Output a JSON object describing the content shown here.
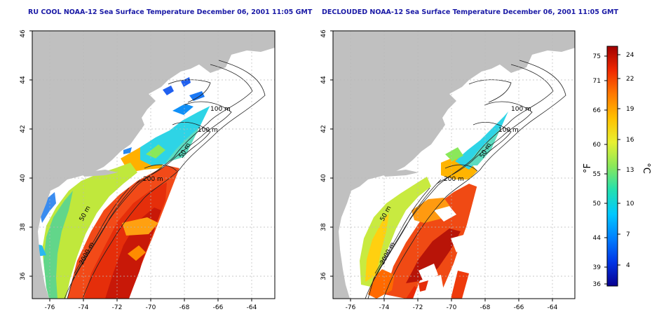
{
  "panels": [
    {
      "title": "RU COOL NOAA-12 Sea Surface Temperature December 06, 2001 11:05 GMT",
      "contour_labels": [
        "100 m",
        "100 m",
        "50 m",
        "200 m",
        "50 m",
        "2000 m"
      ]
    },
    {
      "title": "DECLOUDED NOAA-12 Sea Surface Temperature December 06, 2001 11:05 GMT",
      "contour_labels": [
        "100 m",
        "100 m",
        "50 m",
        "200 m",
        "50 m",
        "2000 m"
      ]
    }
  ],
  "map_axes": {
    "lon_ticks": [
      "-76",
      "-74",
      "-72",
      "-70",
      "-68",
      "-66",
      "-64"
    ],
    "lat_ticks": [
      "36",
      "38",
      "40",
      "42",
      "44",
      "46"
    ]
  },
  "colorbar": {
    "unit_f": "°F",
    "unit_c": "°C",
    "f_ticks": [
      "75",
      "71",
      "66",
      "60",
      "55",
      "50",
      "44",
      "39",
      "36"
    ],
    "c_ticks": [
      "24",
      "22",
      "19",
      "16",
      "13",
      "10",
      "7",
      "4"
    ],
    "colors": [
      "#08008f",
      "#0035e6",
      "#0080ff",
      "#00c8ff",
      "#22e0b0",
      "#8ae85a",
      "#e8f030",
      "#ffc000",
      "#ff7a00",
      "#f02800",
      "#a00000"
    ]
  },
  "colors": {
    "land": "#c0c0c0",
    "ocean": "#ffffff",
    "title": "#1a1aa6"
  }
}
